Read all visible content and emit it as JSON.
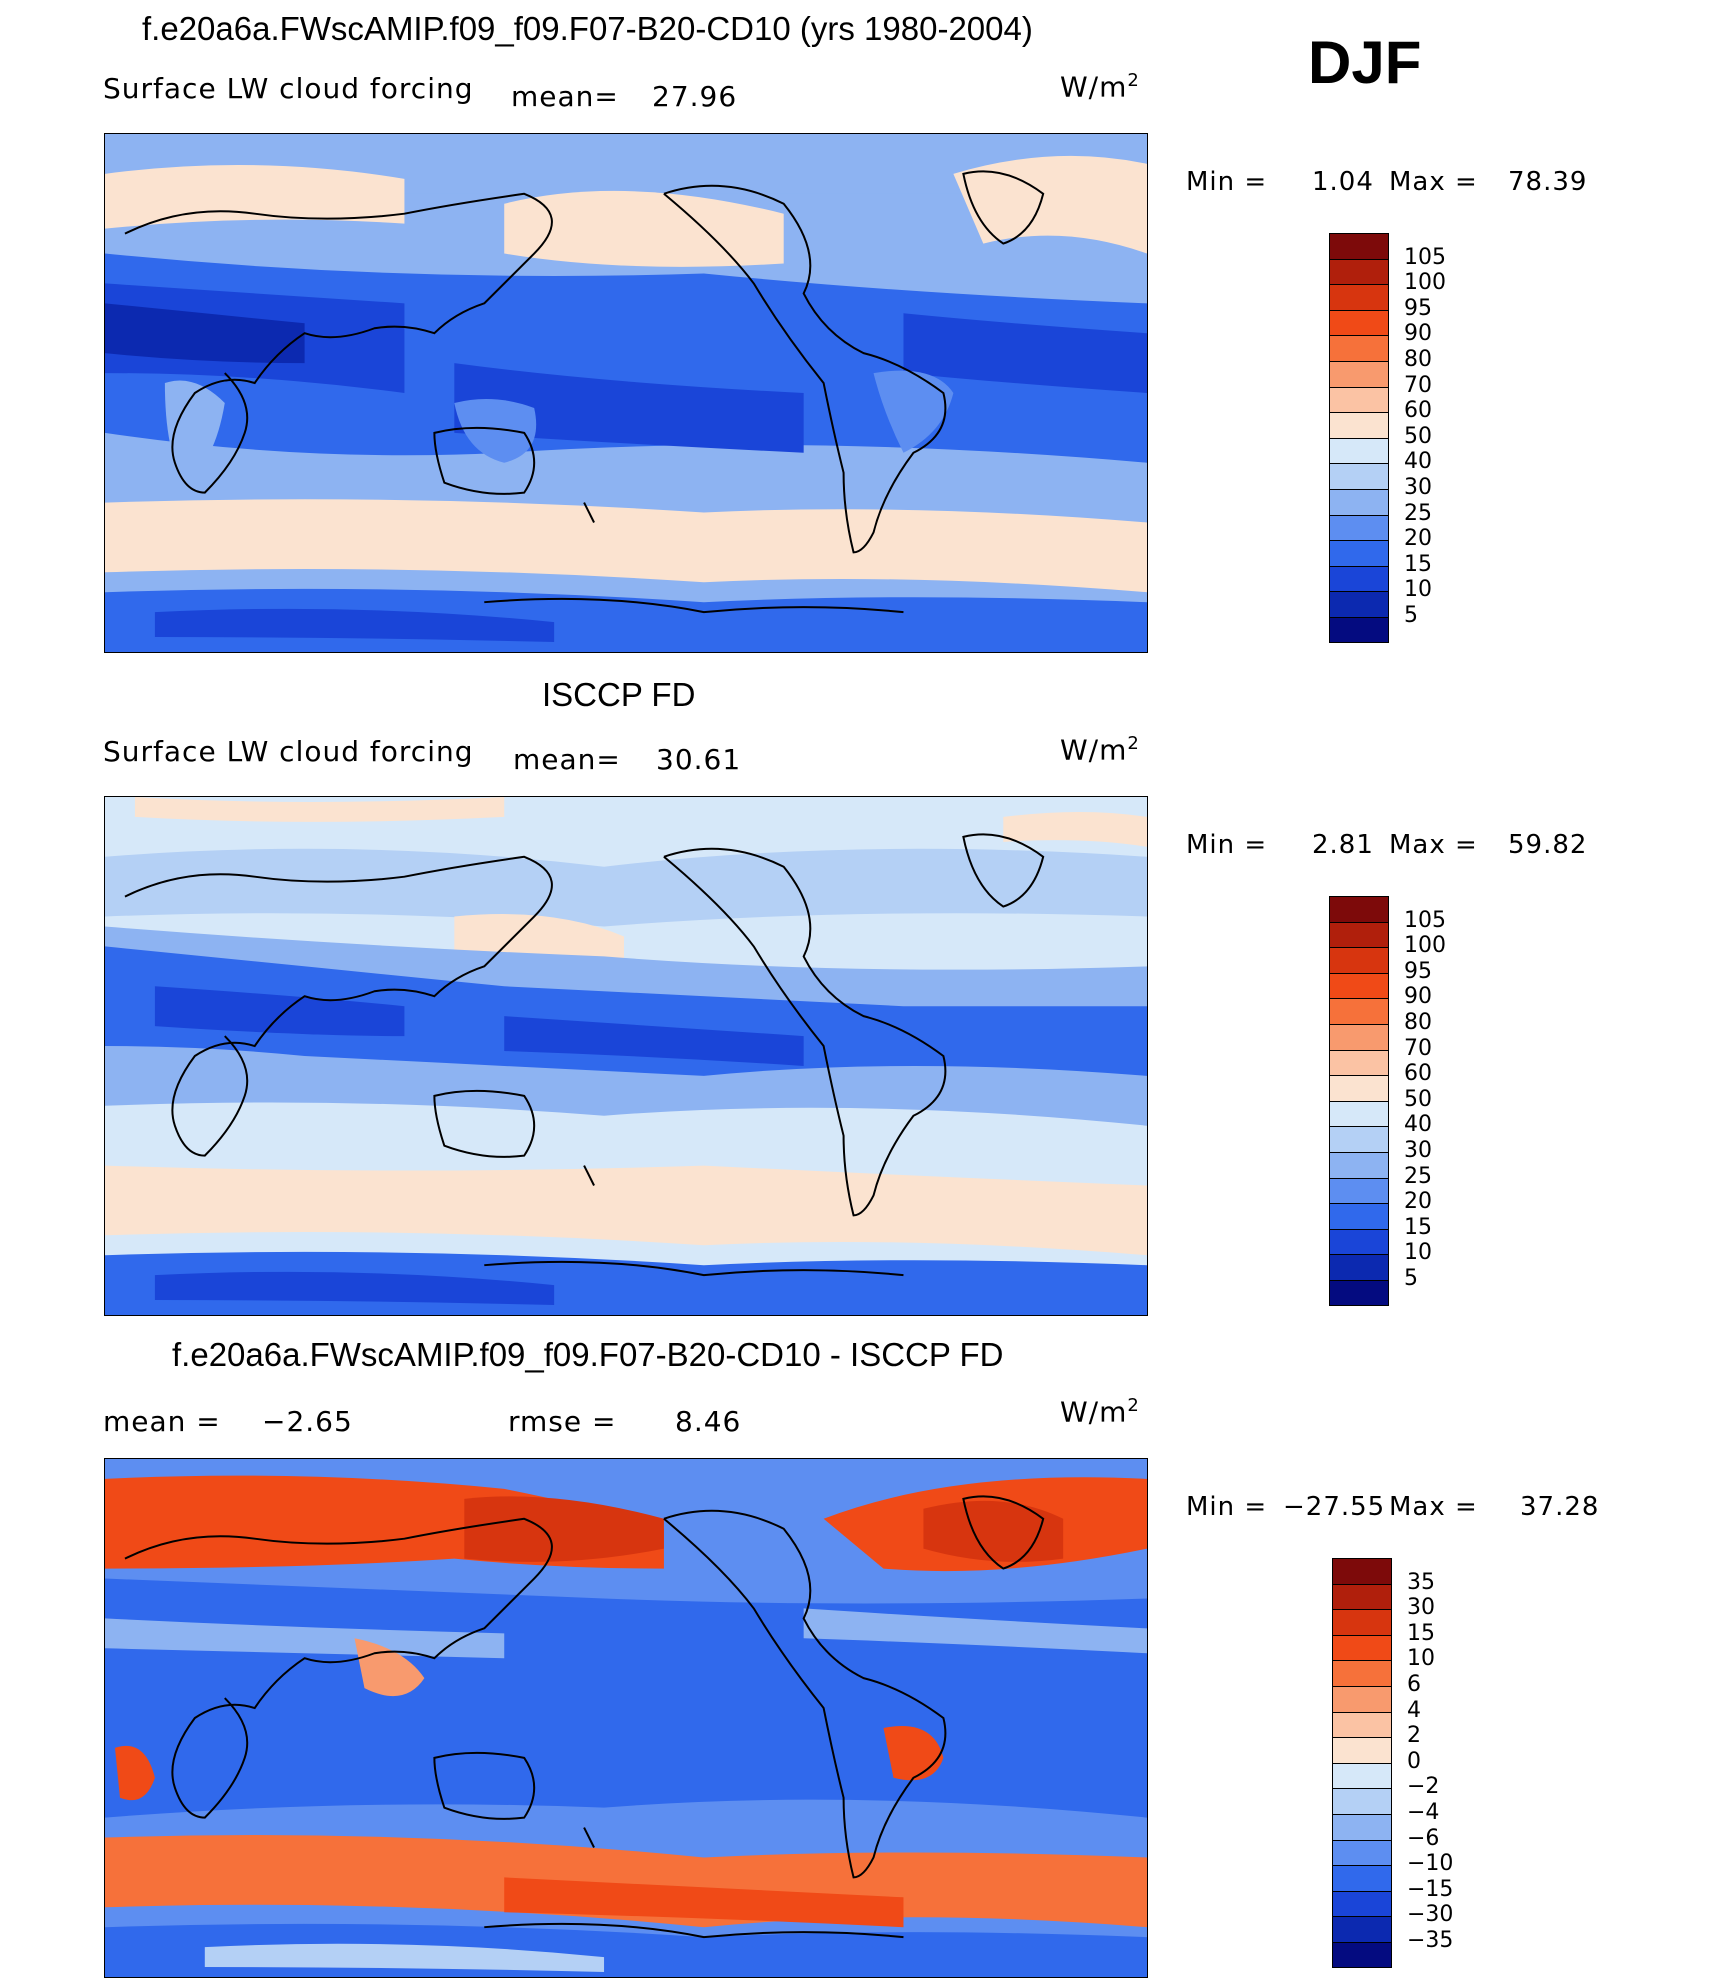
{
  "season": "DJF",
  "panels": [
    {
      "id": "model",
      "title": "f.e20a6a.FWscAMIP.f09_f09.F07-B20-CD10 (yrs 1980-2004)",
      "variable": "Surface LW cloud forcing",
      "stat1_label": "mean=",
      "stat1_value": "27.96",
      "units": "W/m",
      "units_sup": "2",
      "min_label": "Min =",
      "min_value": "1.04",
      "max_label": "Max =",
      "max_value": "78.39",
      "colorbar": {
        "labels": [
          "105",
          "100",
          "95",
          "90",
          "80",
          "70",
          "60",
          "50",
          "40",
          "30",
          "25",
          "20",
          "15",
          "10",
          "5"
        ],
        "colors": [
          "#7d0a0a",
          "#b01f0c",
          "#d7350f",
          "#f04a17",
          "#f6713a",
          "#f89a6e",
          "#fbc3a4",
          "#fbe3d0",
          "#d6e8f9",
          "#b4d0f5",
          "#8db3f2",
          "#5d8ef1",
          "#3069ec",
          "#1a45d8",
          "#0c29b0",
          "#040b80"
        ]
      }
    },
    {
      "id": "obs",
      "title": "ISCCP FD",
      "variable": "Surface LW cloud forcing",
      "stat1_label": "mean=",
      "stat1_value": "30.61",
      "units": "W/m",
      "units_sup": "2",
      "min_label": "Min =",
      "min_value": "2.81",
      "max_label": "Max =",
      "max_value": "59.82",
      "colorbar": {
        "labels": [
          "105",
          "100",
          "95",
          "90",
          "80",
          "70",
          "60",
          "50",
          "40",
          "30",
          "25",
          "20",
          "15",
          "10",
          "5"
        ],
        "colors": [
          "#7d0a0a",
          "#b01f0c",
          "#d7350f",
          "#f04a17",
          "#f6713a",
          "#f89a6e",
          "#fbc3a4",
          "#fbe3d0",
          "#d6e8f9",
          "#b4d0f5",
          "#8db3f2",
          "#5d8ef1",
          "#3069ec",
          "#1a45d8",
          "#0c29b0",
          "#040b80"
        ]
      }
    },
    {
      "id": "diff",
      "title": "f.e20a6a.FWscAMIP.f09_f09.F07-B20-CD10 - ISCCP FD",
      "stat1_label": "mean =",
      "stat1_value": "−2.65",
      "stat2_label": "rmse =",
      "stat2_value": "8.46",
      "units": "W/m",
      "units_sup": "2",
      "min_label": "Min =",
      "min_value": "−27.55",
      "max_label": "Max =",
      "max_value": "37.28",
      "colorbar": {
        "labels": [
          "35",
          "30",
          "15",
          "10",
          "6",
          "4",
          "2",
          "0",
          "−2",
          "−4",
          "−6",
          "−10",
          "−15",
          "−30",
          "−35"
        ],
        "colors": [
          "#7d0a0a",
          "#b01f0c",
          "#d7350f",
          "#f04a17",
          "#f6713a",
          "#f89a6e",
          "#fbc3a4",
          "#fbe3d0",
          "#d6e8f9",
          "#b4d0f5",
          "#8db3f2",
          "#5d8ef1",
          "#3069ec",
          "#1a45d8",
          "#0c29b0",
          "#040b80"
        ]
      }
    }
  ]
}
